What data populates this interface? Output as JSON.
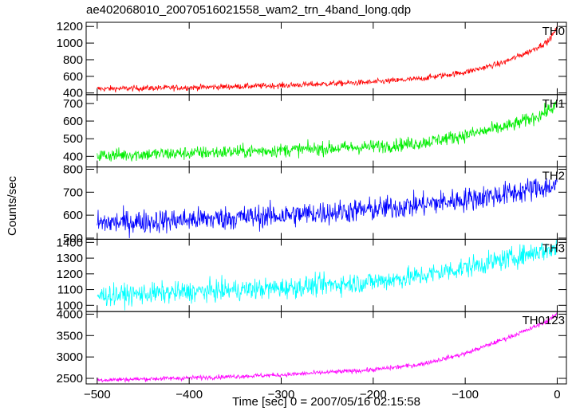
{
  "chart_data": {
    "type": "line",
    "title": "ae402068010_20070516021558_wam2_trn_4band_long.qdp",
    "xlabel": "Time [sec] 0 = 2007/05/16 02:15:58",
    "ylabel": "Counts/sec",
    "xlim": [
      -512,
      10
    ],
    "xticks": [
      -500,
      -400,
      -300,
      -200,
      -100,
      0
    ],
    "x_start": -500,
    "x_end": 0,
    "panels": [
      {
        "name": "TH0",
        "color": "#ff0000",
        "ylim": [
          380,
          1250
        ],
        "yticks": [
          400,
          600,
          800,
          1000,
          1200
        ],
        "trend": [
          [
            -500,
            450
          ],
          [
            -400,
            465
          ],
          [
            -300,
            490
          ],
          [
            -200,
            530
          ],
          [
            -150,
            570
          ],
          [
            -100,
            650
          ],
          [
            -60,
            760
          ],
          [
            -30,
            900
          ],
          [
            -10,
            1020
          ],
          [
            0,
            1180
          ]
        ],
        "noise": 20
      },
      {
        "name": "TH1",
        "color": "#00ee00",
        "ylim": [
          340,
          750
        ],
        "yticks": [
          400,
          500,
          600,
          700
        ],
        "trend": [
          [
            -500,
            405
          ],
          [
            -400,
            418
          ],
          [
            -300,
            435
          ],
          [
            -200,
            455
          ],
          [
            -150,
            475
          ],
          [
            -100,
            520
          ],
          [
            -50,
            575
          ],
          [
            -20,
            630
          ],
          [
            0,
            690
          ]
        ],
        "noise": 22
      },
      {
        "name": "TH2",
        "color": "#0000ff",
        "ylim": [
          495,
          810
        ],
        "yticks": [
          500,
          600,
          700,
          800
        ],
        "trend": [
          [
            -500,
            565
          ],
          [
            -400,
            580
          ],
          [
            -300,
            598
          ],
          [
            -200,
            625
          ],
          [
            -150,
            645
          ],
          [
            -100,
            668
          ],
          [
            -50,
            695
          ],
          [
            -20,
            720
          ],
          [
            0,
            725
          ]
        ],
        "noise": 30
      },
      {
        "name": "TH3",
        "color": "#00ffff",
        "ylim": [
          960,
          1420
        ],
        "yticks": [
          1000,
          1100,
          1200,
          1300,
          1400
        ],
        "trend": [
          [
            -500,
            1060
          ],
          [
            -400,
            1085
          ],
          [
            -300,
            1110
          ],
          [
            -200,
            1150
          ],
          [
            -150,
            1185
          ],
          [
            -100,
            1240
          ],
          [
            -50,
            1300
          ],
          [
            -20,
            1345
          ],
          [
            0,
            1360
          ]
        ],
        "noise": 38
      },
      {
        "name": "TH0123",
        "color": "#ff00ff",
        "ylim": [
          2370,
          4060
        ],
        "yticks": [
          2500,
          3000,
          3500,
          4000
        ],
        "trend": [
          [
            -500,
            2460
          ],
          [
            -400,
            2510
          ],
          [
            -300,
            2580
          ],
          [
            -200,
            2700
          ],
          [
            -150,
            2820
          ],
          [
            -100,
            3080
          ],
          [
            -60,
            3400
          ],
          [
            -30,
            3650
          ],
          [
            -10,
            3850
          ],
          [
            0,
            4000
          ]
        ],
        "noise": 30
      }
    ]
  }
}
